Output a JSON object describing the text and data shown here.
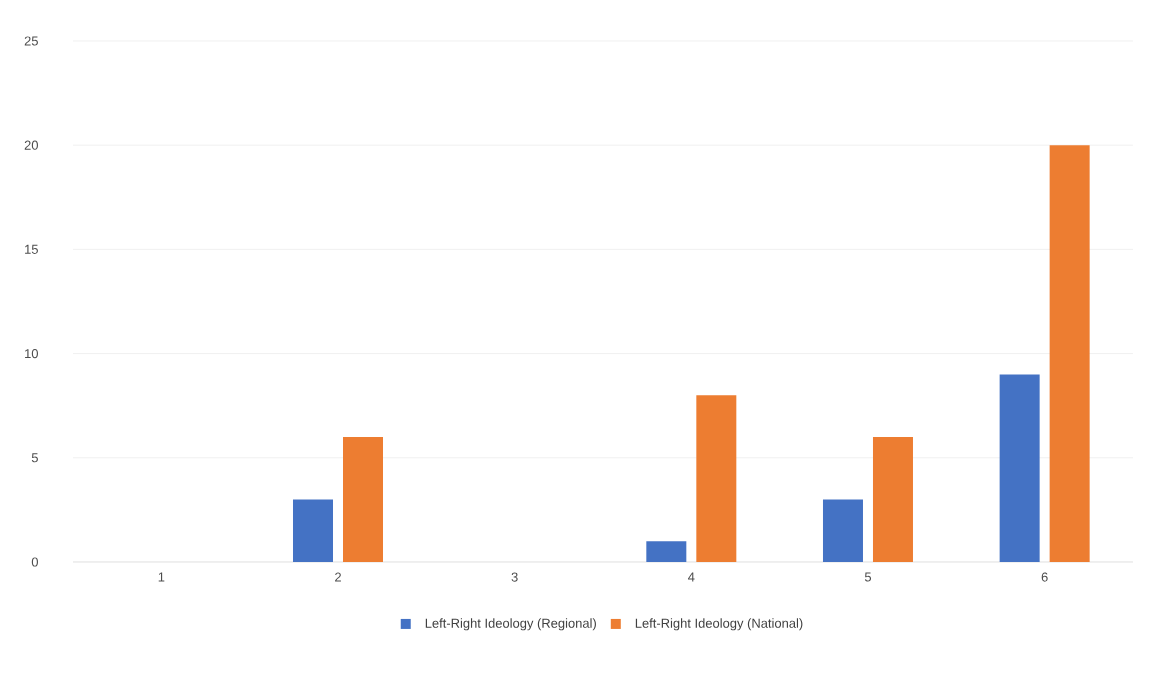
{
  "chart_data": {
    "type": "bar",
    "categories": [
      "1",
      "2",
      "3",
      "4",
      "5",
      "6"
    ],
    "series": [
      {
        "name": "Left-Right Ideology (Regional)",
        "color": "#4472c4",
        "values": [
          0,
          3,
          0,
          1,
          3,
          9
        ]
      },
      {
        "name": "Left-Right Ideology (National)",
        "color": "#ed7d31",
        "values": [
          0,
          6,
          0,
          8,
          6,
          20
        ]
      }
    ],
    "ylim": [
      0,
      25
    ],
    "yticks": [
      0,
      5,
      10,
      15,
      20,
      25
    ],
    "grid": "y",
    "legend": "bottom"
  }
}
